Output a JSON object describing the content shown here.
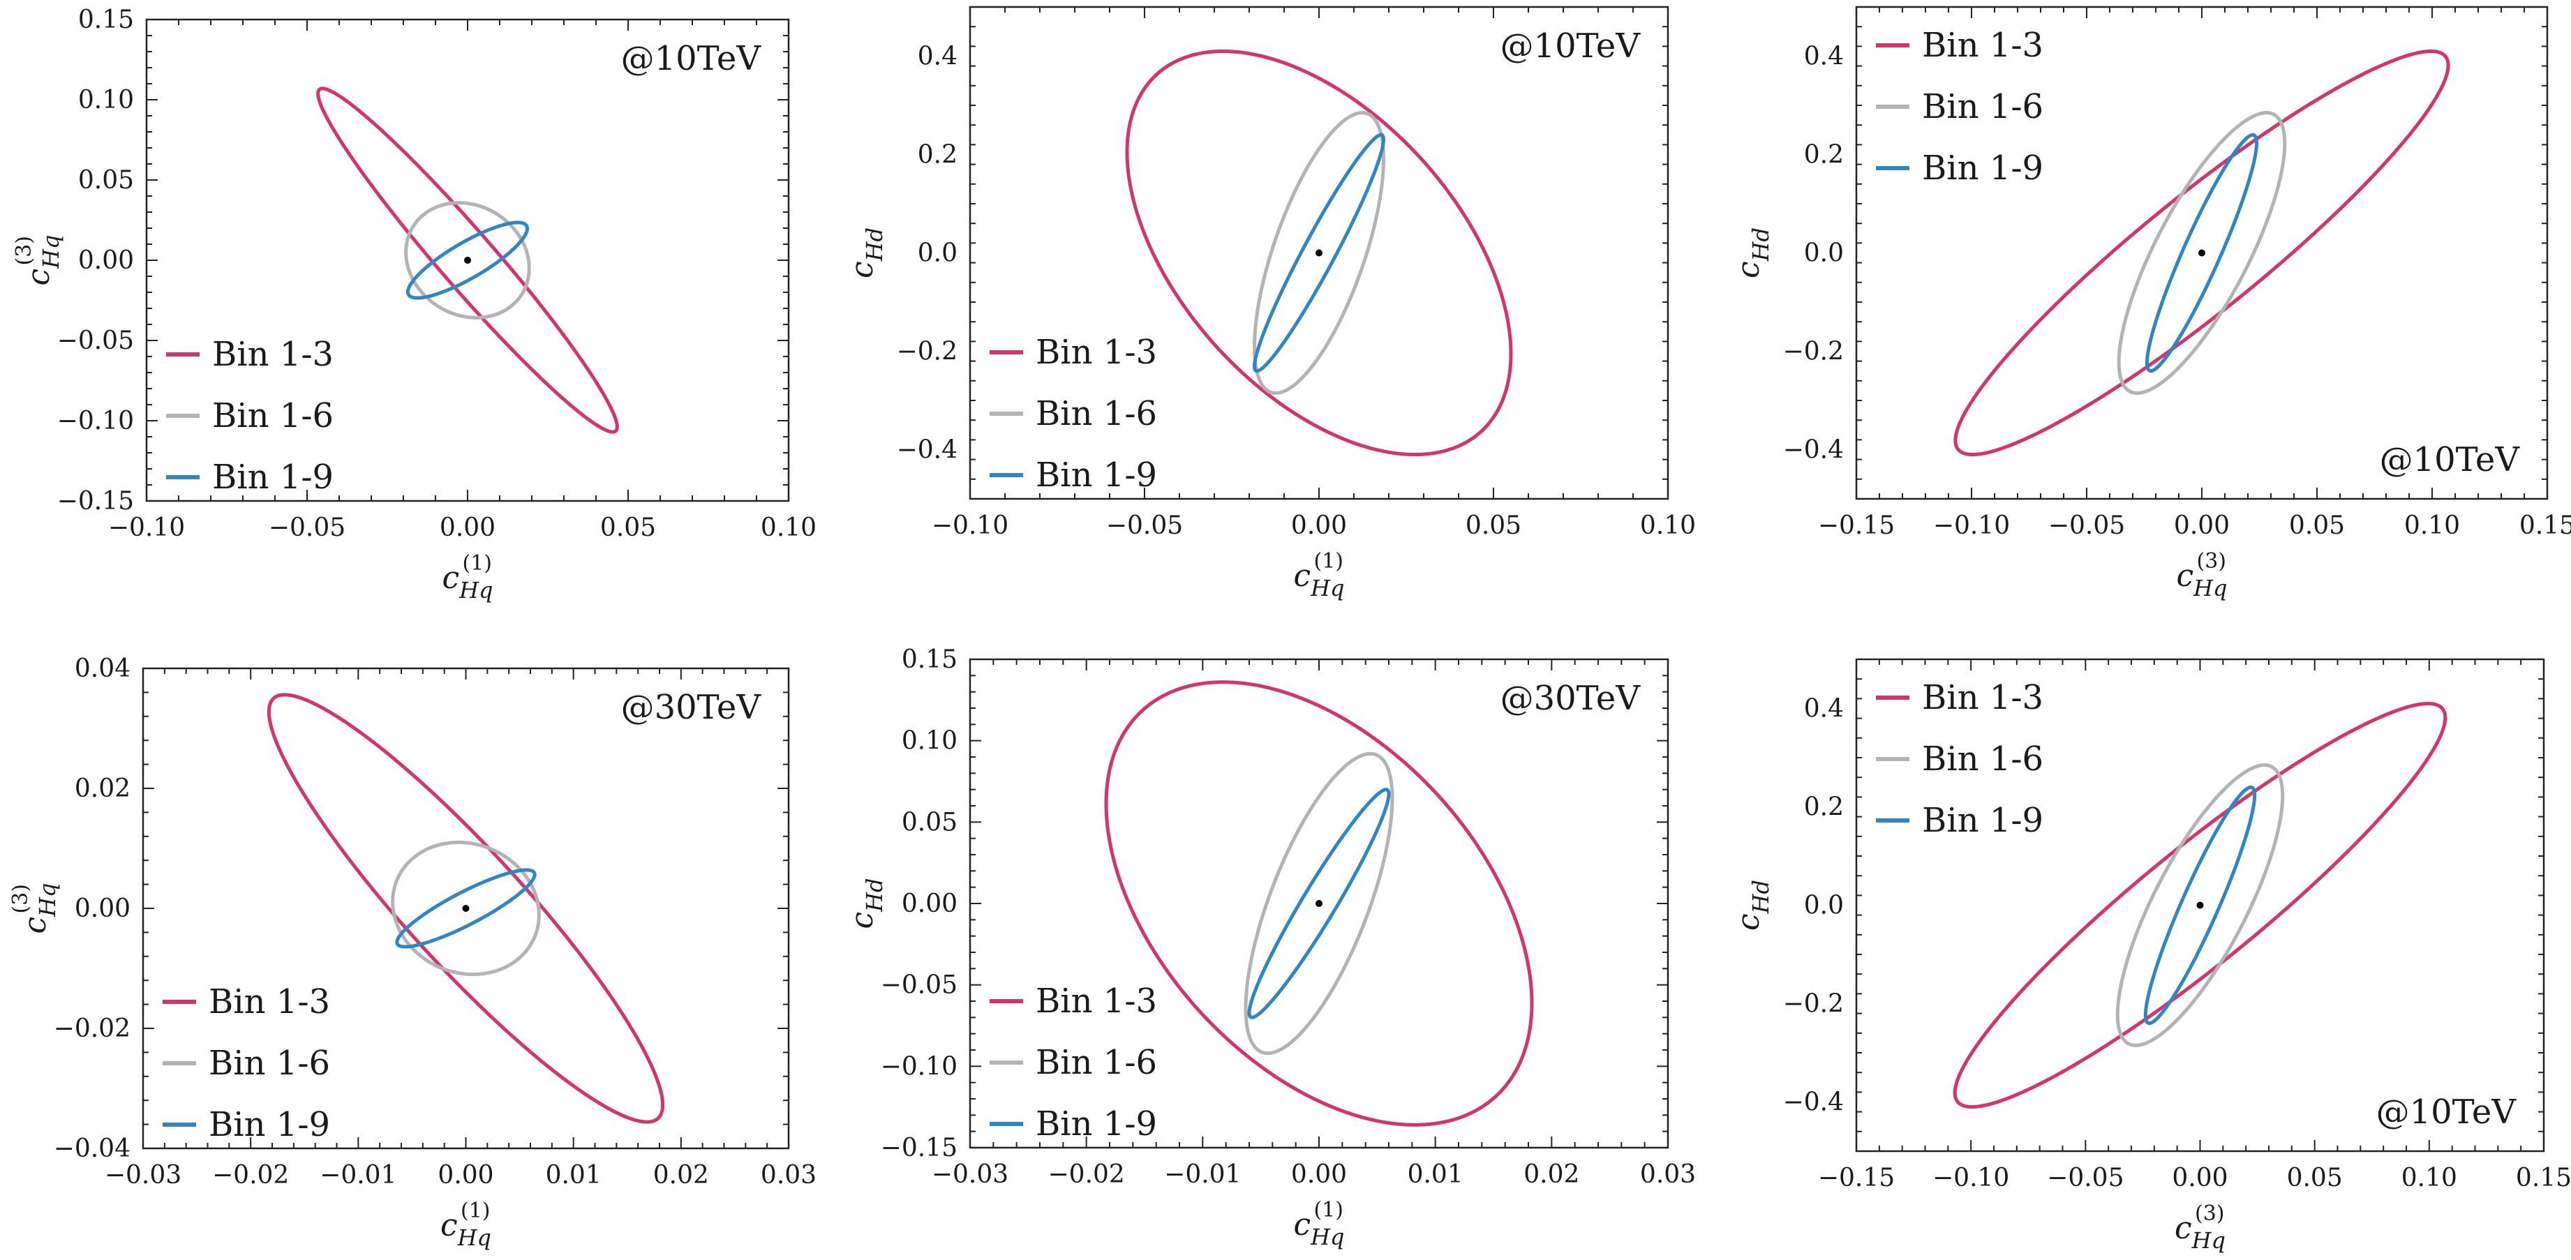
{
  "colors": {
    "bin13": "#d6336c",
    "bin16": "#b3b3b3",
    "bin19": "#2f86c6",
    "edge": "#b7d35a",
    "point": "#000000"
  },
  "chart_data": [
    {
      "type": "contour",
      "xlabel": "c_Hq^(1)",
      "ylabel": "c_Hq^(3)",
      "xlim": [
        -0.1,
        0.1
      ],
      "ylim": [
        -0.15,
        0.15
      ],
      "xticks": [
        -0.1,
        -0.05,
        0,
        0.05,
        0.1
      ],
      "yticks": [
        -0.15,
        -0.1,
        -0.05,
        0,
        0.05,
        0.1,
        0.15
      ],
      "xtick_labels": [
        "−0.10",
        "−0.05",
        "0.00",
        "0.05",
        "0.10"
      ],
      "ytick_labels": [
        "−0.15",
        "−0.10",
        "−0.05",
        "0.00",
        "0.05",
        "0.10",
        "0.15"
      ],
      "annotation": "@10TeV",
      "annotation_pos": "top-right",
      "legend_pos": "bottom-left",
      "series": [
        {
          "name": "Bin 1-3",
          "color": "bin13",
          "cx": 0,
          "cy": 0,
          "rx": 0.0466,
          "ry": 0.107,
          "sxy": -0.97
        },
        {
          "name": "Bin 1-6",
          "color": "bin16",
          "cx": 0,
          "cy": 0,
          "rx": 0.0192,
          "ry": 0.0358,
          "sxy": -0.14
        },
        {
          "name": "Bin 1-9",
          "color": "bin19",
          "cx": 0,
          "cy": 0,
          "rx": 0.0186,
          "ry": 0.0235,
          "sxy": 0.84
        }
      ],
      "best_fit": [
        0,
        0
      ]
    },
    {
      "type": "contour",
      "xlabel": "c_Hq^(1)",
      "ylabel": "c_Hd",
      "xlim": [
        -0.1,
        0.1
      ],
      "ylim": [
        -0.5,
        0.5
      ],
      "xticks": [
        -0.1,
        -0.05,
        0,
        0.05,
        0.1
      ],
      "yticks": [
        -0.4,
        -0.2,
        0,
        0.2,
        0.4
      ],
      "xtick_labels": [
        "−0.10",
        "−0.05",
        "0.00",
        "0.05",
        "0.10"
      ],
      "ytick_labels": [
        "−0.4",
        "−0.2",
        "0.0",
        "0.2",
        "0.4"
      ],
      "annotation": "@10TeV",
      "annotation_pos": "top-right",
      "legend_pos": "bottom-left",
      "series": [
        {
          "name": "Bin 1-3",
          "color": "bin13",
          "cx": 0,
          "cy": 0,
          "rx": 0.055,
          "ry": 0.41,
          "sxy": -0.5
        },
        {
          "name": "Bin 1-6",
          "color": "bin16",
          "cx": 0,
          "cy": 0,
          "rx": 0.0185,
          "ry": 0.285,
          "sxy": 0.67
        },
        {
          "name": "Bin 1-9",
          "color": "bin19",
          "cx": 0,
          "cy": 0,
          "rx": 0.0185,
          "ry": 0.24,
          "sxy": 0.96
        }
      ],
      "best_fit": [
        0,
        0
      ]
    },
    {
      "type": "contour",
      "xlabel": "c_Hq^(3)",
      "ylabel": "c_Hd",
      "xlim": [
        -0.15,
        0.15
      ],
      "ylim": [
        -0.5,
        0.5
      ],
      "xticks": [
        -0.15,
        -0.1,
        -0.05,
        0,
        0.05,
        0.1,
        0.15
      ],
      "yticks": [
        -0.4,
        -0.2,
        0,
        0.2,
        0.4
      ],
      "xtick_labels": [
        "−0.15",
        "−0.10",
        "−0.05",
        "0.00",
        "0.05",
        "0.10",
        "0.15"
      ],
      "ytick_labels": [
        "−0.4",
        "−0.2",
        "0.0",
        "0.2",
        "0.4"
      ],
      "annotation": "@10TeV",
      "annotation_pos": "bottom-right",
      "legend_pos": "top-left",
      "series": [
        {
          "name": "Bin 1-3",
          "color": "bin13",
          "cx": 0,
          "cy": 0,
          "rx": 0.107,
          "ry": 0.41,
          "sxy": 0.93
        },
        {
          "name": "Bin 1-6",
          "color": "bin16",
          "cx": 0,
          "cy": 0,
          "rx": 0.036,
          "ry": 0.285,
          "sxy": 0.78
        },
        {
          "name": "Bin 1-9",
          "color": "bin19",
          "cx": 0,
          "cy": 0,
          "rx": 0.0238,
          "ry": 0.24,
          "sxy": 0.93
        }
      ],
      "best_fit": [
        0,
        0
      ]
    },
    {
      "type": "contour",
      "xlabel": "c_Hq^(1)",
      "ylabel": "c_Hq^(3)",
      "xlim": [
        -0.03,
        0.03
      ],
      "ylim": [
        -0.04,
        0.04
      ],
      "xticks": [
        -0.03,
        -0.02,
        -0.01,
        0,
        0.01,
        0.02,
        0.03
      ],
      "yticks": [
        -0.04,
        -0.02,
        0,
        0.02,
        0.04
      ],
      "xtick_labels": [
        "−0.03",
        "−0.02",
        "−0.01",
        "0.00",
        "0.01",
        "0.02",
        "0.03"
      ],
      "ytick_labels": [
        "−0.04",
        "−0.02",
        "0.00",
        "0.02",
        "0.04"
      ],
      "annotation": "@30TeV",
      "annotation_pos": "top-right",
      "legend_pos": "bottom-left",
      "series": [
        {
          "name": "Bin 1-3",
          "color": "bin13",
          "cx": 0,
          "cy": 0,
          "rx": 0.0183,
          "ry": 0.0356,
          "sxy": -0.92
        },
        {
          "name": "Bin 1-6",
          "color": "bin16",
          "cx": 0,
          "cy": 0,
          "rx": 0.0068,
          "ry": 0.011,
          "sxy": -0.1
        },
        {
          "name": "Bin 1-9",
          "color": "bin19",
          "cx": 0,
          "cy": 0,
          "rx": 0.0064,
          "ry": 0.0064,
          "sxy": 0.88
        }
      ],
      "best_fit": [
        0,
        0
      ]
    },
    {
      "type": "contour",
      "xlabel": "c_Hq^(1)",
      "ylabel": "c_Hd",
      "xlim": [
        -0.03,
        0.03
      ],
      "ylim": [
        -0.15,
        0.15
      ],
      "xticks": [
        -0.03,
        -0.02,
        -0.01,
        0,
        0.01,
        0.02,
        0.03
      ],
      "yticks": [
        -0.15,
        -0.1,
        -0.05,
        0,
        0.05,
        0.1,
        0.15
      ],
      "xtick_labels": [
        "−0.03",
        "−0.02",
        "−0.01",
        "0.00",
        "0.01",
        "0.02",
        "0.03"
      ],
      "ytick_labels": [
        "−0.15",
        "−0.10",
        "−0.05",
        "0.00",
        "0.05",
        "0.10",
        "0.15"
      ],
      "annotation": "@30TeV",
      "annotation_pos": "top-right",
      "legend_pos": "bottom-left",
      "series": [
        {
          "name": "Bin 1-3",
          "color": "bin13",
          "cx": 0,
          "cy": 0,
          "rx": 0.0183,
          "ry": 0.136,
          "sxy": -0.45
        },
        {
          "name": "Bin 1-6",
          "color": "bin16",
          "cx": 0,
          "cy": 0,
          "rx": 0.0063,
          "ry": 0.092,
          "sxy": 0.7
        },
        {
          "name": "Bin 1-9",
          "color": "bin19",
          "cx": 0,
          "cy": 0,
          "rx": 0.006,
          "ry": 0.07,
          "sxy": 0.96
        }
      ],
      "best_fit": [
        0,
        0
      ]
    },
    {
      "type": "contour",
      "xlabel": "c_Hq^(3)",
      "ylabel": "c_Hd",
      "xlim": [
        -0.15,
        0.15
      ],
      "ylim": [
        -0.5,
        0.5
      ],
      "xticks": [
        -0.15,
        -0.1,
        -0.05,
        0,
        0.05,
        0.1,
        0.15
      ],
      "yticks": [
        -0.4,
        -0.2,
        0,
        0.2,
        0.4
      ],
      "xtick_labels": [
        "−0.15",
        "−0.10",
        "−0.05",
        "0.00",
        "0.05",
        "0.10",
        "0.15"
      ],
      "ytick_labels": [
        "−0.4",
        "−0.2",
        "0.0",
        "0.2",
        "0.4"
      ],
      "annotation": "@10TeV",
      "annotation_pos": "bottom-right",
      "legend_pos": "top-left",
      "series": [
        {
          "name": "Bin 1-3",
          "color": "bin13",
          "cx": 0,
          "cy": 0,
          "rx": 0.107,
          "ry": 0.41,
          "sxy": 0.93
        },
        {
          "name": "Bin 1-6",
          "color": "bin16",
          "cx": 0,
          "cy": 0,
          "rx": 0.036,
          "ry": 0.285,
          "sxy": 0.78
        },
        {
          "name": "Bin 1-9",
          "color": "bin19",
          "cx": 0,
          "cy": 0,
          "rx": 0.0238,
          "ry": 0.24,
          "sxy": 0.93
        }
      ],
      "best_fit": [
        0,
        0
      ]
    }
  ]
}
